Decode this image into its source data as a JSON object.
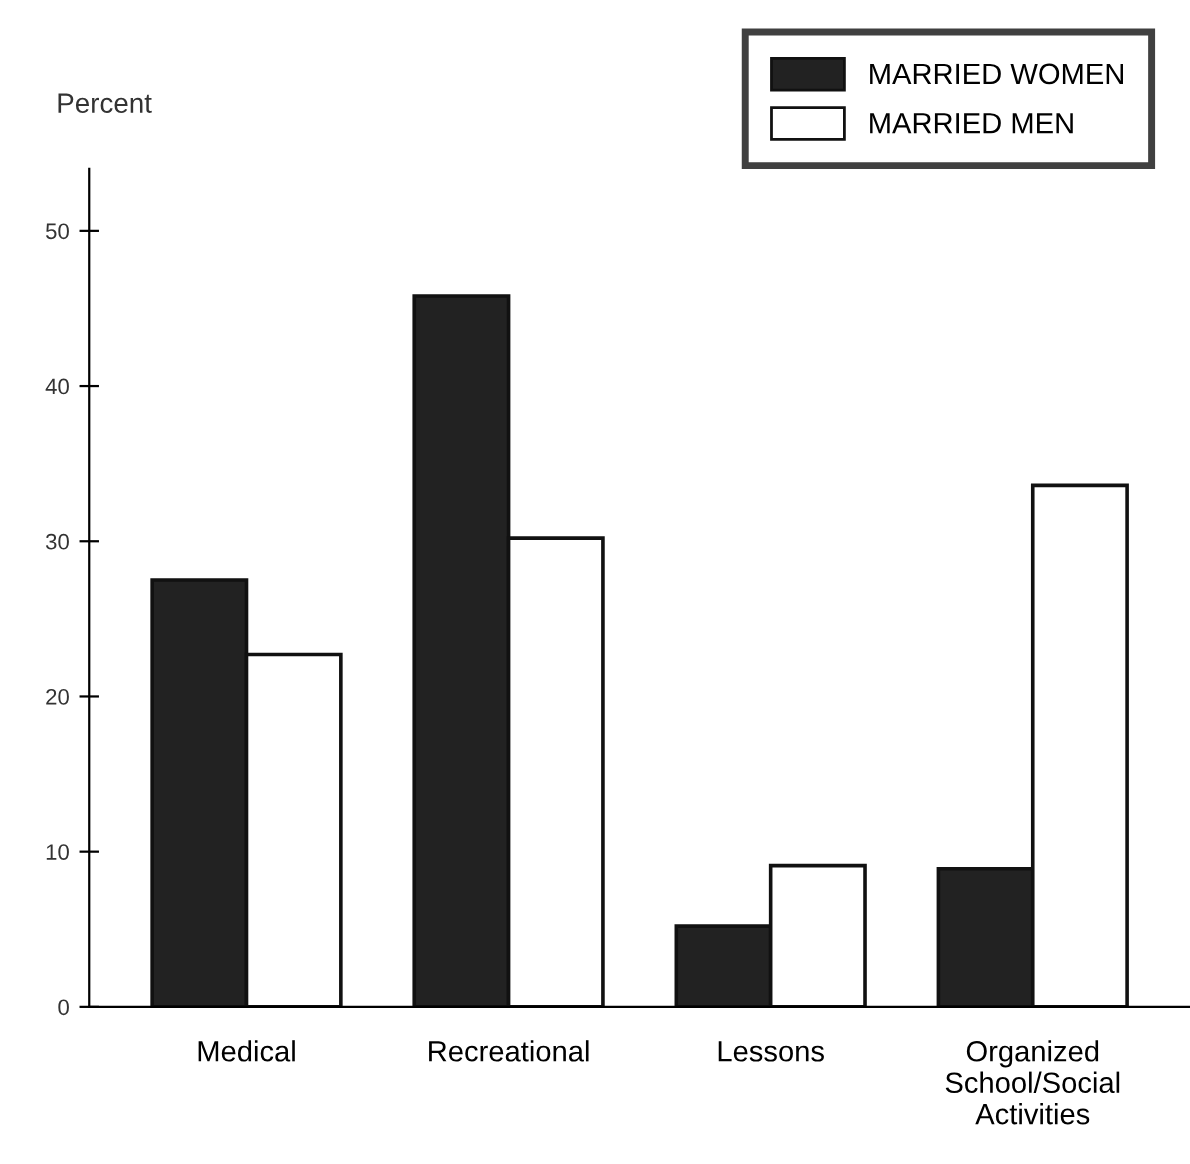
{
  "chart_data": {
    "type": "bar",
    "ylabel": "Percent",
    "categories": [
      "Medical",
      "Recreational",
      "Lessons",
      "Organized\nSchool/Social\nActivities"
    ],
    "series": [
      {
        "name": "MARRIED WOMEN",
        "color": "#222222",
        "values": [
          27.5,
          45.8,
          5.2,
          8.9
        ]
      },
      {
        "name": "MARRIED MEN",
        "color": "#ffffff",
        "values": [
          22.7,
          30.2,
          9.1,
          33.6
        ]
      }
    ],
    "ylim": [
      0,
      54
    ],
    "yticks": [
      0,
      10,
      20,
      30,
      40,
      50
    ],
    "grid": false,
    "legend": "top right"
  }
}
